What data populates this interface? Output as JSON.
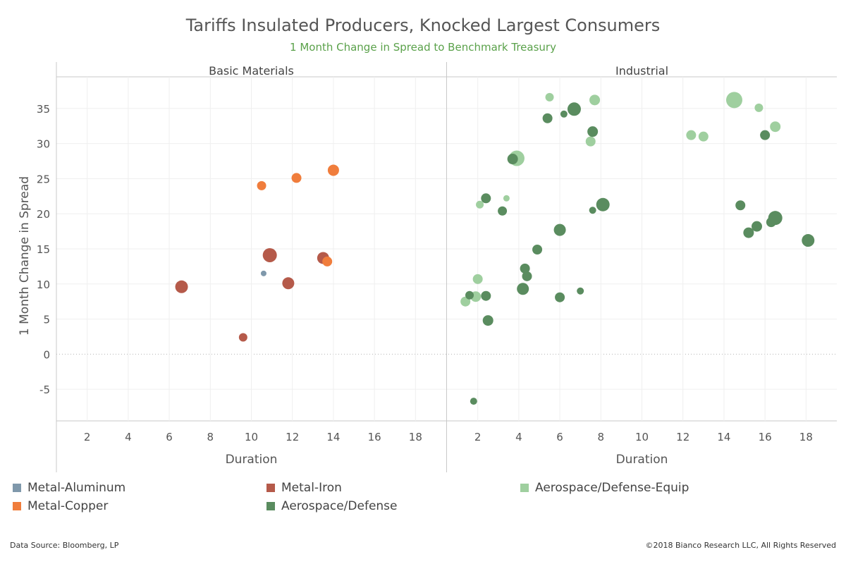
{
  "header": {
    "title": "Tariffs Insulated Producers, Knocked Largest Consumers",
    "subtitle": "1 Month Change in Spread to Benchmark Treasury"
  },
  "footer": {
    "source": "Data Source: Bloomberg, LP",
    "copyright": "©2018 Bianco Research LLC, All Rights Reserved"
  },
  "legend": [
    {
      "label": "Metal-Aluminum",
      "color": "#7f98ab"
    },
    {
      "label": "Metal-Iron",
      "color": "#b55a4a"
    },
    {
      "label": "Aerospace/Defense-Equip",
      "color": "#9fcf9f"
    },
    {
      "label": "Metal-Copper",
      "color": "#f07d3c"
    },
    {
      "label": "Aerospace/Defense",
      "color": "#5a8c5f"
    }
  ],
  "chart_data": {
    "type": "scatter",
    "ylabel": "1 Month Change in Spread",
    "ylim": [
      -9.5,
      39.5
    ],
    "yticks": [
      -5,
      0,
      5,
      10,
      15,
      20,
      25,
      30,
      35
    ],
    "grid": true,
    "panels": [
      {
        "name": "Basic Materials",
        "xlabel": "Duration",
        "xlim": [
          0.5,
          19.5
        ],
        "xticks": [
          2,
          4,
          6,
          8,
          10,
          12,
          14,
          16,
          18
        ],
        "series": [
          {
            "name": "Metal-Aluminum",
            "color": "#7f98ab",
            "points": [
              {
                "x": 10.6,
                "y": 11.5,
                "size": 4
              }
            ]
          },
          {
            "name": "Metal-Iron",
            "color": "#b55a4a",
            "points": [
              {
                "x": 6.6,
                "y": 9.6,
                "size": 9
              },
              {
                "x": 9.6,
                "y": 2.4,
                "size": 6
              },
              {
                "x": 10.9,
                "y": 14.1,
                "size": 10
              },
              {
                "x": 11.8,
                "y": 10.1,
                "size": 8.5
              },
              {
                "x": 13.5,
                "y": 13.7,
                "size": 8.5
              }
            ]
          },
          {
            "name": "Metal-Copper",
            "color": "#f07d3c",
            "points": [
              {
                "x": 10.5,
                "y": 24.0,
                "size": 6.5
              },
              {
                "x": 12.2,
                "y": 25.1,
                "size": 7
              },
              {
                "x": 14.0,
                "y": 26.2,
                "size": 8
              },
              {
                "x": 13.7,
                "y": 13.2,
                "size": 7
              }
            ]
          }
        ]
      },
      {
        "name": "Industrial",
        "xlabel": "Duration",
        "xlim": [
          0.5,
          19.5
        ],
        "xticks": [
          2,
          4,
          6,
          8,
          10,
          12,
          14,
          16,
          18
        ],
        "series": [
          {
            "name": "Aerospace/Defense-Equip",
            "color": "#9fcf9f",
            "points": [
              {
                "x": 1.4,
                "y": 7.5,
                "size": 7
              },
              {
                "x": 1.9,
                "y": 8.2,
                "size": 7.5
              },
              {
                "x": 2.0,
                "y": 10.7,
                "size": 7
              },
              {
                "x": 2.1,
                "y": 21.3,
                "size": 5.5
              },
              {
                "x": 3.4,
                "y": 22.2,
                "size": 4.5
              },
              {
                "x": 3.9,
                "y": 27.9,
                "size": 11
              },
              {
                "x": 5.5,
                "y": 36.6,
                "size": 6
              },
              {
                "x": 7.5,
                "y": 30.3,
                "size": 7
              },
              {
                "x": 7.7,
                "y": 36.2,
                "size": 7.5
              },
              {
                "x": 12.4,
                "y": 31.2,
                "size": 7
              },
              {
                "x": 13.0,
                "y": 31.0,
                "size": 7
              },
              {
                "x": 14.5,
                "y": 36.2,
                "size": 11.5
              },
              {
                "x": 15.7,
                "y": 35.1,
                "size": 6
              },
              {
                "x": 16.5,
                "y": 32.4,
                "size": 7.5
              }
            ]
          },
          {
            "name": "Aerospace/Defense",
            "color": "#5a8c5f",
            "points": [
              {
                "x": 1.6,
                "y": 8.4,
                "size": 6
              },
              {
                "x": 1.8,
                "y": -6.7,
                "size": 5
              },
              {
                "x": 2.4,
                "y": 22.2,
                "size": 7
              },
              {
                "x": 2.4,
                "y": 8.3,
                "size": 7
              },
              {
                "x": 2.5,
                "y": 4.8,
                "size": 7.5
              },
              {
                "x": 3.2,
                "y": 20.4,
                "size": 6.5
              },
              {
                "x": 3.7,
                "y": 27.8,
                "size": 7.5
              },
              {
                "x": 4.2,
                "y": 9.3,
                "size": 8.5
              },
              {
                "x": 4.3,
                "y": 12.2,
                "size": 7
              },
              {
                "x": 4.4,
                "y": 11.1,
                "size": 7
              },
              {
                "x": 4.9,
                "y": 14.9,
                "size": 7
              },
              {
                "x": 5.4,
                "y": 33.6,
                "size": 7
              },
              {
                "x": 6.0,
                "y": 17.7,
                "size": 8.5
              },
              {
                "x": 6.0,
                "y": 8.1,
                "size": 7
              },
              {
                "x": 6.2,
                "y": 34.2,
                "size": 5
              },
              {
                "x": 6.7,
                "y": 34.9,
                "size": 9.5
              },
              {
                "x": 7.0,
                "y": 9.0,
                "size": 5
              },
              {
                "x": 7.6,
                "y": 31.7,
                "size": 7.5
              },
              {
                "x": 7.6,
                "y": 20.5,
                "size": 5
              },
              {
                "x": 8.1,
                "y": 21.3,
                "size": 9.5
              },
              {
                "x": 14.8,
                "y": 21.2,
                "size": 7
              },
              {
                "x": 15.2,
                "y": 17.3,
                "size": 7.5
              },
              {
                "x": 15.6,
                "y": 18.2,
                "size": 7.5
              },
              {
                "x": 16.0,
                "y": 31.2,
                "size": 7
              },
              {
                "x": 16.3,
                "y": 18.8,
                "size": 7
              },
              {
                "x": 16.5,
                "y": 19.4,
                "size": 10
              },
              {
                "x": 18.1,
                "y": 16.2,
                "size": 9
              }
            ]
          }
        ]
      }
    ]
  }
}
